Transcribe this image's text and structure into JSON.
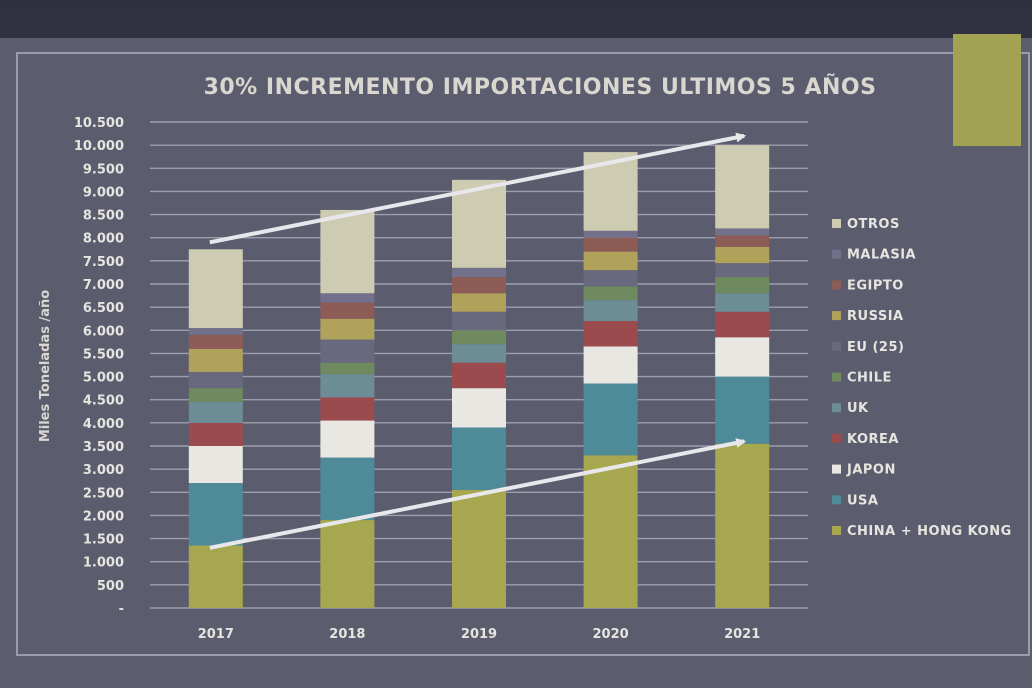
{
  "chart_data": {
    "type": "bar",
    "stacked": true,
    "title": "30% INCREMENTO IMPORTACIONES ULTIMOS 5 AÑOS",
    "ylabel": "Miles Toneladas /año",
    "xlabel": "",
    "ylim": [
      0,
      10500
    ],
    "yticks": [
      0,
      500,
      1000,
      1500,
      2000,
      2500,
      3000,
      3500,
      4000,
      4500,
      5000,
      5500,
      6000,
      6500,
      7000,
      7500,
      8000,
      8500,
      9000,
      9500,
      10000,
      10500
    ],
    "ytick_labels": [
      "-",
      "500",
      "1.000",
      "1.500",
      "2.000",
      "2.500",
      "3.000",
      "3.500",
      "4.000",
      "4.500",
      "5.000",
      "5.500",
      "6.000",
      "6.500",
      "7.000",
      "7.500",
      "8.000",
      "8.500",
      "9.000",
      "9.500",
      "10.000",
      "10.500"
    ],
    "categories": [
      "2017",
      "2018",
      "2019",
      "2020",
      "2021"
    ],
    "grid": true,
    "legend_position": "right",
    "series": [
      {
        "name": "CHINA + HONG KONG",
        "color": "#a7a74f",
        "values": [
          1350,
          1900,
          2550,
          3300,
          3550
        ]
      },
      {
        "name": "USA",
        "color": "#4f8a98",
        "values": [
          1350,
          1350,
          1350,
          1550,
          1450
        ]
      },
      {
        "name": "JAPON",
        "color": "#e8e7e2",
        "values": [
          800,
          800,
          850,
          800,
          850
        ]
      },
      {
        "name": "KOREA",
        "color": "#9b4b4e",
        "values": [
          500,
          500,
          550,
          550,
          550
        ]
      },
      {
        "name": "UK",
        "color": "#6d8d96",
        "values": [
          450,
          500,
          400,
          450,
          400
        ]
      },
      {
        "name": "CHILE",
        "color": "#6e8a5e",
        "values": [
          300,
          250,
          300,
          300,
          350
        ]
      },
      {
        "name": "EU (25)",
        "color": "#68687e",
        "values": [
          350,
          500,
          400,
          350,
          300
        ]
      },
      {
        "name": "RUSSIA",
        "color": "#b0a15b",
        "values": [
          500,
          450,
          400,
          400,
          350
        ]
      },
      {
        "name": "EGIPTO",
        "color": "#8d5c56",
        "values": [
          300,
          350,
          350,
          300,
          250
        ]
      },
      {
        "name": "MALASIA",
        "color": "#72708a",
        "values": [
          150,
          200,
          200,
          150,
          150
        ]
      },
      {
        "name": "OTROS",
        "color": "#cdcbb1",
        "values": [
          1700,
          1800,
          1900,
          1700,
          1800
        ]
      }
    ],
    "annotations": [
      {
        "type": "arrow",
        "from": {
          "x": "2017",
          "y": 7900
        },
        "to": {
          "x": "2021",
          "y": 10200
        }
      },
      {
        "type": "arrow",
        "from": {
          "x": "2017",
          "y": 1300
        },
        "to": {
          "x": "2021",
          "y": 3600
        }
      }
    ]
  },
  "colors": {
    "background": "#5b5d6e",
    "gridline": "#9c9eae",
    "text": "#e6e5df",
    "arrow": "#e8e8ec",
    "accent": "#a2a352"
  }
}
